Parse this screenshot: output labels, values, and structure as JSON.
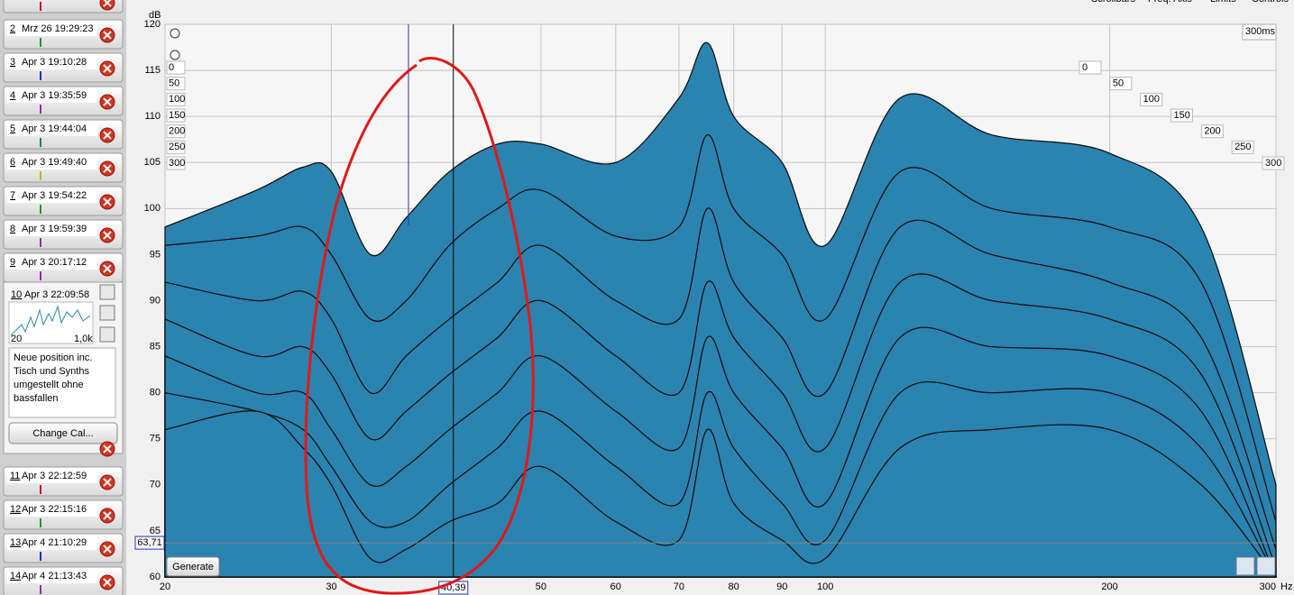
{
  "toolbar": [
    "Scrollbars",
    "Freq. Axis",
    "Limits",
    "Controls"
  ],
  "measurements": [
    {
      "num": "2",
      "date": "Mrz 26 19:29:23"
    },
    {
      "num": "3",
      "date": "Apr 3 19:10:28"
    },
    {
      "num": "4",
      "date": "Apr 3 19:35:59"
    },
    {
      "num": "5",
      "date": "Apr 3 19:44:04"
    },
    {
      "num": "6",
      "date": "Apr 3 19:49:40"
    },
    {
      "num": "7",
      "date": "Apr 3 19:54:22"
    },
    {
      "num": "8",
      "date": "Apr 3 19:59:39"
    },
    {
      "num": "9",
      "date": "Apr 3 20:17:12"
    }
  ],
  "selected": {
    "num": "10",
    "date": "Apr 3 22:09:58",
    "thumb_x": [
      "20",
      "1,0k"
    ],
    "note": [
      "Neue position inc.",
      "Tisch und Synths",
      "umgestellt ohne",
      "bassfallen"
    ],
    "button": "Change Cal..."
  },
  "measurements_after": [
    {
      "num": "11",
      "date": "Apr 3 22:12:59"
    },
    {
      "num": "12",
      "date": "Apr 3 22:15:16"
    },
    {
      "num": "13",
      "date": "Apr 4 21:10:29"
    },
    {
      "num": "14",
      "date": "Apr 4 21:13:43"
    }
  ],
  "chart_data": {
    "type": "waterfall",
    "y_label": "dB",
    "x_unit": "Hz",
    "log_x": true,
    "grid": true,
    "color": "#2b83b0",
    "xlim": [
      20,
      300
    ],
    "xticks": [
      20,
      30,
      50,
      60,
      70,
      80,
      90,
      100,
      200,
      300
    ],
    "ylim": [
      60,
      120
    ],
    "yticks": [
      60,
      65,
      70,
      75,
      80,
      85,
      90,
      95,
      100,
      105,
      110,
      115,
      120
    ],
    "time_ticks": [
      0,
      50,
      100,
      150,
      200,
      250,
      300
    ],
    "time_span": "300ms",
    "x": [
      20,
      25,
      28,
      30,
      33,
      36,
      40,
      45,
      50,
      60,
      70,
      75,
      80,
      90,
      100,
      120,
      150,
      200,
      250,
      300
    ],
    "slices": [
      {
        "values": [
          98,
          102,
          104.5,
          104,
          95,
          99,
          104,
          107,
          107,
          105,
          112,
          118,
          110,
          105,
          96,
          112,
          108,
          106,
          98,
          70
        ]
      },
      {
        "values": [
          96,
          97,
          98,
          95,
          88,
          90,
          96,
          100,
          102,
          97,
          98,
          108,
          100,
          95,
          88,
          104,
          100,
          98,
          92,
          66
        ]
      },
      {
        "values": [
          92,
          90,
          91,
          88,
          80,
          84,
          88,
          92,
          96,
          90,
          88,
          100,
          92,
          86,
          80,
          98,
          95,
          92,
          86,
          63
        ]
      },
      {
        "values": [
          88,
          84,
          85,
          82,
          75,
          78,
          82,
          86,
          90,
          84,
          80,
          92,
          86,
          80,
          74,
          92,
          90,
          88,
          82,
          61
        ]
      },
      {
        "values": [
          84,
          80,
          80,
          76,
          70,
          72,
          76,
          80,
          84,
          78,
          74,
          86,
          80,
          74,
          68,
          86,
          85,
          84,
          78,
          60
        ]
      },
      {
        "values": [
          80,
          78,
          76,
          72,
          66,
          66,
          70,
          74,
          78,
          72,
          68,
          80,
          74,
          68,
          64,
          80,
          80,
          80,
          74,
          60
        ]
      },
      {
        "values": [
          76,
          78,
          74,
          70,
          62,
          63,
          66,
          68,
          72,
          66,
          64,
          76,
          68,
          64,
          62,
          74,
          76,
          76,
          70,
          60
        ]
      }
    ],
    "cursor": {
      "x": {
        "value": 40.39,
        "label": "40,39"
      },
      "y": {
        "value": 63.71,
        "label": "63,71"
      }
    },
    "button": "Generate"
  }
}
